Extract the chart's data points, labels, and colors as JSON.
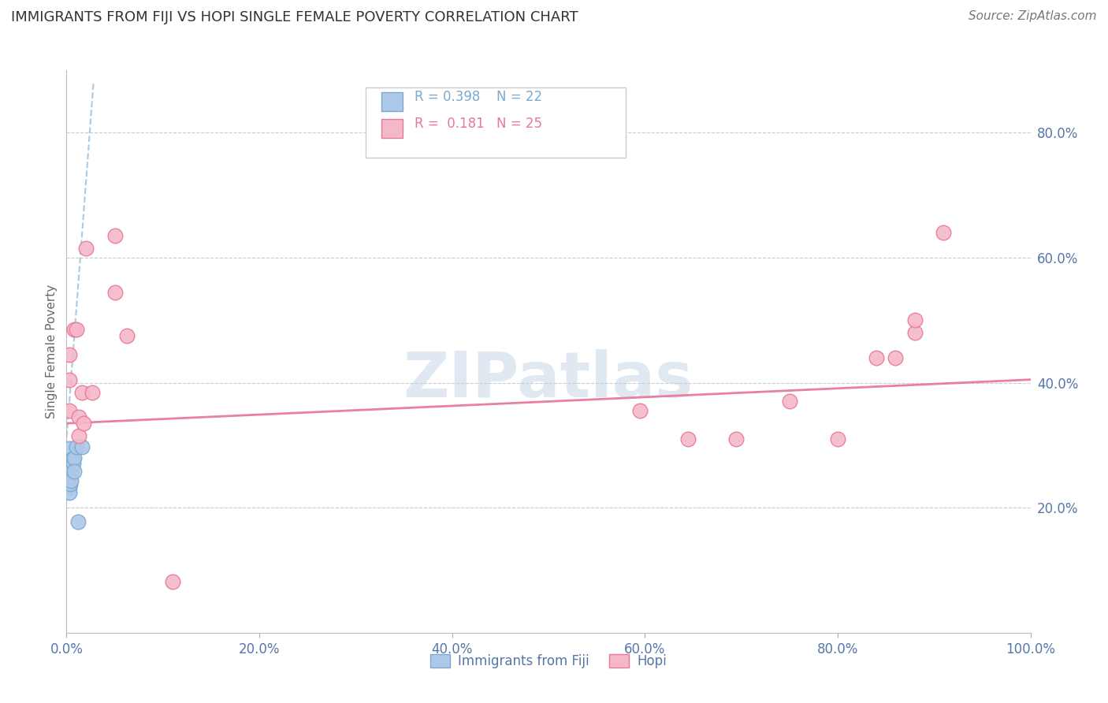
{
  "title": "IMMIGRANTS FROM FIJI VS HOPI SINGLE FEMALE POVERTY CORRELATION CHART",
  "source": "Source: ZipAtlas.com",
  "ylabel": "Single Female Poverty",
  "legend_labels": [
    "Immigrants from Fiji",
    "Hopi"
  ],
  "fiji_R": "0.398",
  "fiji_N": "22",
  "hopi_R": "0.181",
  "hopi_N": "25",
  "xlim": [
    0.0,
    1.0
  ],
  "ylim": [
    0.0,
    0.9
  ],
  "xtick_labels": [
    "0.0%",
    "20.0%",
    "40.0%",
    "60.0%",
    "80.0%",
    "100.0%"
  ],
  "ytick_labels": [
    "20.0%",
    "40.0%",
    "60.0%",
    "80.0%"
  ],
  "ytick_vals": [
    0.2,
    0.4,
    0.6,
    0.8
  ],
  "xtick_vals": [
    0.0,
    0.2,
    0.4,
    0.6,
    0.8,
    1.0
  ],
  "fiji_color": "#adc8e8",
  "hopi_color": "#f5b8c8",
  "fiji_edge_color": "#7aaad0",
  "hopi_edge_color": "#e87898",
  "fiji_line_color": "#90b8d8",
  "hopi_line_color": "#e8799a",
  "fiji_dots": [
    [
      0.003,
      0.295
    ],
    [
      0.003,
      0.275
    ],
    [
      0.003,
      0.265
    ],
    [
      0.003,
      0.255
    ],
    [
      0.003,
      0.248
    ],
    [
      0.003,
      0.24
    ],
    [
      0.003,
      0.232
    ],
    [
      0.003,
      0.224
    ],
    [
      0.004,
      0.27
    ],
    [
      0.004,
      0.26
    ],
    [
      0.004,
      0.25
    ],
    [
      0.004,
      0.238
    ],
    [
      0.005,
      0.268
    ],
    [
      0.005,
      0.258
    ],
    [
      0.005,
      0.243
    ],
    [
      0.006,
      0.278
    ],
    [
      0.007,
      0.271
    ],
    [
      0.008,
      0.28
    ],
    [
      0.008,
      0.258
    ],
    [
      0.01,
      0.298
    ],
    [
      0.012,
      0.178
    ],
    [
      0.016,
      0.298
    ]
  ],
  "hopi_dots": [
    [
      0.003,
      0.405
    ],
    [
      0.003,
      0.355
    ],
    [
      0.003,
      0.445
    ],
    [
      0.008,
      0.485
    ],
    [
      0.01,
      0.485
    ],
    [
      0.013,
      0.345
    ],
    [
      0.013,
      0.315
    ],
    [
      0.016,
      0.385
    ],
    [
      0.018,
      0.335
    ],
    [
      0.02,
      0.615
    ],
    [
      0.027,
      0.385
    ],
    [
      0.05,
      0.635
    ],
    [
      0.05,
      0.545
    ],
    [
      0.063,
      0.475
    ],
    [
      0.11,
      0.082
    ],
    [
      0.595,
      0.355
    ],
    [
      0.645,
      0.31
    ],
    [
      0.695,
      0.31
    ],
    [
      0.75,
      0.37
    ],
    [
      0.8,
      0.31
    ],
    [
      0.84,
      0.44
    ],
    [
      0.86,
      0.44
    ],
    [
      0.88,
      0.48
    ],
    [
      0.88,
      0.5
    ],
    [
      0.91,
      0.64
    ]
  ],
  "fiji_trend_x": [
    -0.01,
    0.028
  ],
  "fiji_trend_y": [
    0.105,
    0.88
  ],
  "hopi_trend_x": [
    0.0,
    1.0
  ],
  "hopi_trend_y": [
    0.335,
    0.405
  ],
  "background_color": "#ffffff",
  "grid_color": "#cccccc",
  "title_color": "#333333",
  "axis_tick_color": "#5577aa",
  "watermark_text": "ZIPatlas",
  "watermark_color": "#c8d8e8",
  "title_fontsize": 13,
  "source_fontsize": 11,
  "tick_fontsize": 12,
  "ylabel_fontsize": 11
}
